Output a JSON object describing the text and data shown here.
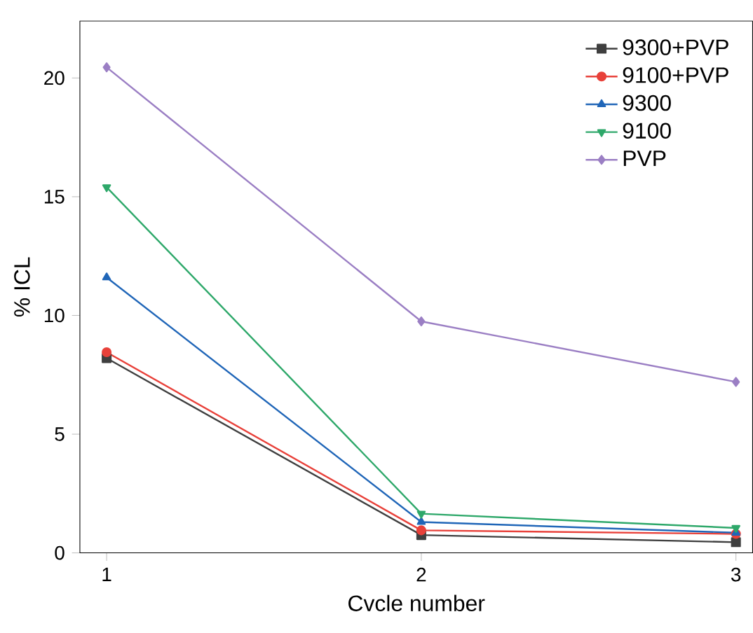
{
  "chart_data": {
    "type": "line",
    "xlabel": "Cvcle number",
    "ylabel": "% ICL",
    "x": [
      1,
      2,
      3
    ],
    "xlim": [
      0.915,
      3.053
    ],
    "xticks": [
      1,
      2,
      3
    ],
    "ylim": [
      0,
      22.4
    ],
    "yticks": [
      0,
      5,
      10,
      15,
      20
    ],
    "legend": "top right",
    "grid": false,
    "line_style": "solid",
    "series": [
      {
        "name": "9300+PVP",
        "color": "#3f3f3f",
        "marker": "square",
        "values": [
          8.2,
          0.75,
          0.45
        ]
      },
      {
        "name": "9100+PVP",
        "color": "#e8413a",
        "marker": "circle",
        "values": [
          8.45,
          0.95,
          0.8
        ]
      },
      {
        "name": "9300",
        "color": "#2066b8",
        "marker": "triangle",
        "values": [
          11.6,
          1.3,
          0.85
        ]
      },
      {
        "name": "9100",
        "color": "#2ea86a",
        "marker": "triangle-down",
        "values": [
          15.4,
          1.65,
          1.05
        ]
      },
      {
        "name": "PVP",
        "color": "#9b7fc4",
        "marker": "diamond",
        "values": [
          20.45,
          9.75,
          7.2
        ]
      }
    ]
  }
}
